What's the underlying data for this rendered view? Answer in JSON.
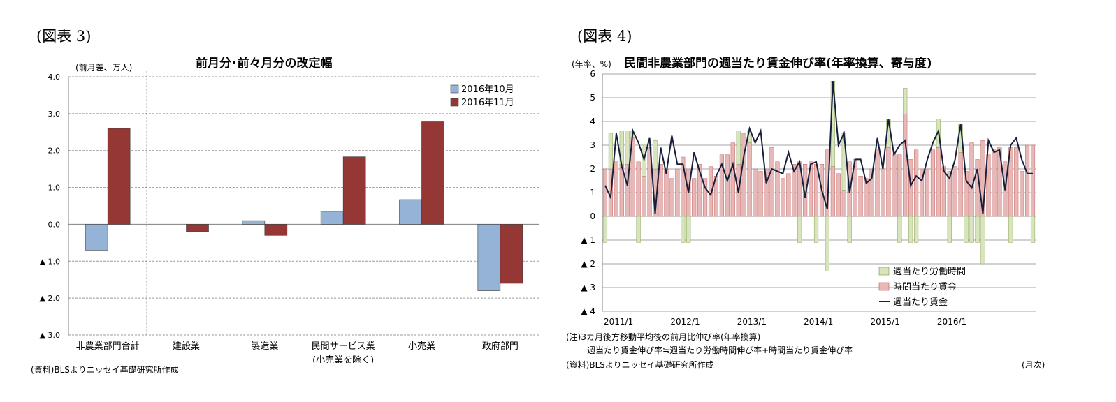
{
  "left_panel": {
    "figure_label": "(図表 3)",
    "source": "(資料)BLSよりニッセイ基礎研究所作成"
  },
  "right_panel": {
    "figure_label": "(図表 4)",
    "note_line1": "(注)3カ月後方移動平均後の前月比伸び率(年率換算)",
    "note_line2": "週当たり賃金伸び率≒週当たり労働時間伸び率+時間当たり賃金伸び率",
    "source": "(資料)BLSよりニッセイ基礎研究所作成",
    "month_unit": "(月次)"
  },
  "chart_data": [
    {
      "type": "bar",
      "title": "前月分･前々月分の改定幅",
      "ylabel": "(前月差、万人)",
      "ylim": [
        -3.0,
        4.0
      ],
      "yticks": [
        {
          "value": 4.0,
          "label": "4.0"
        },
        {
          "value": 3.0,
          "label": "3.0"
        },
        {
          "value": 2.0,
          "label": "2.0"
        },
        {
          "value": 1.0,
          "label": "1.0"
        },
        {
          "value": 0.0,
          "label": "0.0"
        },
        {
          "value": -1.0,
          "label": "▲ 1.0"
        },
        {
          "value": -2.0,
          "label": "▲ 2.0"
        },
        {
          "value": -3.0,
          "label": "▲ 3.0"
        }
      ],
      "categories": [
        "非農業部門合計",
        "建設業",
        "製造業",
        "民間サービス業\n(小売業を除く)",
        "小売業",
        "政府部門"
      ],
      "series": [
        {
          "name": "2016年10月",
          "color": "#95B3D7",
          "values": [
            -0.7,
            0.0,
            0.1,
            0.35,
            0.67,
            -1.8
          ]
        },
        {
          "name": "2016年11月",
          "color": "#953735",
          "values": [
            2.6,
            -0.2,
            -0.3,
            1.83,
            2.78,
            -1.6
          ]
        }
      ],
      "grid": true,
      "legend_position": "top-right"
    },
    {
      "type": "bar+line",
      "title": "民間非農業部門の週当たり賃金伸び率(年率換算、寄与度)",
      "ylabel": "(年率、%)",
      "ylim": [
        -4,
        6
      ],
      "yticks": [
        {
          "value": 6,
          "label": "6"
        },
        {
          "value": 5,
          "label": "5"
        },
        {
          "value": 4,
          "label": "4"
        },
        {
          "value": 3,
          "label": "3"
        },
        {
          "value": 2,
          "label": "2"
        },
        {
          "value": 1,
          "label": "1"
        },
        {
          "value": 0,
          "label": "0"
        },
        {
          "value": -1,
          "label": "▲ 1"
        },
        {
          "value": -2,
          "label": "▲ 2"
        },
        {
          "value": -3,
          "label": "▲ 3"
        },
        {
          "value": -4,
          "label": "▲ 4"
        }
      ],
      "x_tick_labels": [
        {
          "index": 0,
          "label": "2011/1"
        },
        {
          "index": 12,
          "label": "2012/1"
        },
        {
          "index": 24,
          "label": "2013/1"
        },
        {
          "index": 36,
          "label": "2014/1"
        },
        {
          "index": 48,
          "label": "2015/1"
        },
        {
          "index": 60,
          "label": "2016/1"
        }
      ],
      "x_unit": "(月次)",
      "series": [
        {
          "name": "週当たり労働時間",
          "kind": "bar",
          "color": "#D7E4BD",
          "values": [
            -1.1,
            1.5,
            0.0,
            1.4,
            1.4,
            0.3,
            -1.1,
            1.3,
            0.0,
            1.2,
            0.0,
            0.0,
            0.0,
            0.0,
            -1.1,
            -1.1,
            0.0,
            0.0,
            0.0,
            0.0,
            0.0,
            0.0,
            0.0,
            0.0,
            1.4,
            0.0,
            0.5,
            0.0,
            0.0,
            0.0,
            0.0,
            0.0,
            0.0,
            0.0,
            0.0,
            -1.1,
            0.0,
            0.0,
            -1.1,
            0.0,
            -2.3,
            3.6,
            0.0,
            2.4,
            -1.1,
            0.0,
            0.0,
            0.0,
            0.0,
            0.0,
            0.0,
            1.2,
            0.0,
            -1.1,
            1.1,
            -1.1,
            -1.1,
            0.0,
            0.0,
            0.0,
            1.2,
            0.0,
            -1.1,
            0.0,
            1.2,
            -1.1,
            -1.1,
            -1.1,
            -2.0,
            0.0,
            0.0,
            0.0,
            0.0,
            -1.1,
            0.0,
            0.0,
            0.0,
            -1.1
          ]
        },
        {
          "name": "時間当たり賃金",
          "kind": "bar",
          "color": "#E6B9B8",
          "values": [
            2.0,
            2.0,
            2.3,
            2.2,
            2.2,
            3.3,
            2.3,
            1.7,
            2.9,
            2.0,
            2.2,
            2.0,
            1.6,
            2.0,
            2.5,
            2.0,
            1.6,
            2.2,
            1.6,
            2.1,
            1.7,
            2.6,
            2.6,
            3.1,
            2.2,
            3.5,
            3.1,
            2.0,
            1.9,
            2.0,
            2.9,
            2.3,
            1.6,
            1.8,
            2.2,
            2.3,
            2.2,
            2.3,
            2.2,
            2.2,
            2.8,
            2.1,
            1.8,
            1.1,
            2.3,
            2.4,
            1.7,
            1.6,
            2.0,
            2.8,
            2.0,
            2.9,
            2.6,
            2.6,
            4.3,
            2.4,
            2.8,
            2.0,
            2.0,
            2.8,
            2.9,
            2.1,
            1.9,
            2.1,
            2.7,
            1.9,
            3.1,
            2.4,
            3.2,
            2.6,
            2.8,
            2.9,
            2.3,
            2.9,
            2.9,
            1.9,
            3.0,
            3.0
          ]
        },
        {
          "name": "週当たり賃金",
          "kind": "line",
          "color": "#17203A",
          "values": [
            1.3,
            0.8,
            3.5,
            2.1,
            1.3,
            3.6,
            3.1,
            2.4,
            3.3,
            0.1,
            2.9,
            1.8,
            3.4,
            2.2,
            2.2,
            1.0,
            2.7,
            1.9,
            1.2,
            0.9,
            1.7,
            2.2,
            1.5,
            2.2,
            1.0,
            2.6,
            3.7,
            3.1,
            3.6,
            1.4,
            2.0,
            1.9,
            1.8,
            2.7,
            1.9,
            2.3,
            0.8,
            2.2,
            2.3,
            1.1,
            0.3,
            5.7,
            3.0,
            3.5,
            1.0,
            2.4,
            2.4,
            1.4,
            1.6,
            3.3,
            2.0,
            4.1,
            2.6,
            3.0,
            3.2,
            1.3,
            1.7,
            1.5,
            2.4,
            3.1,
            3.6,
            1.9,
            1.6,
            2.4,
            3.9,
            1.5,
            1.2,
            2.0,
            0.1,
            3.2,
            2.7,
            2.8,
            1.1,
            3.0,
            3.3,
            2.4,
            1.8,
            1.8
          ]
        }
      ],
      "grid": true,
      "legend_position": "bottom-right"
    }
  ]
}
